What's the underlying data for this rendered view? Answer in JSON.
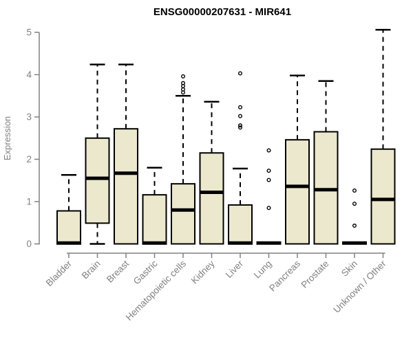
{
  "chart_data": {
    "type": "boxplot",
    "title": "ENSG00000207631 - MIR641",
    "ylabel": "Expression",
    "xlabel": "",
    "ylim": [
      0,
      5.1
    ],
    "yticks": [
      0,
      1,
      2,
      3,
      4,
      5
    ],
    "grid": false,
    "legend": false,
    "colors": {
      "box_fill": "#ece8cd",
      "box_stroke": "#000000",
      "median": "#000000",
      "whisker": "#000000",
      "axis": "#808080",
      "tick_label": "#808080",
      "title": "#000000"
    },
    "categories": [
      "Bladder",
      "Brain",
      "Breast",
      "Gastric",
      "Hematopoietic cells",
      "Kidney",
      "Liver",
      "Lung",
      "Pancreas",
      "Prostate",
      "Skin",
      "Unknown / Other"
    ],
    "boxes": [
      {
        "category": "Bladder",
        "whisker_low": 0,
        "q1": 0,
        "median": 0.02,
        "q3": 0.78,
        "whisker_high": 1.63,
        "outliers": []
      },
      {
        "category": "Brain",
        "whisker_low": 0,
        "q1": 0.49,
        "median": 1.55,
        "q3": 2.5,
        "whisker_high": 4.24,
        "outliers": []
      },
      {
        "category": "Breast",
        "whisker_low": 0,
        "q1": 0,
        "median": 1.67,
        "q3": 2.72,
        "whisker_high": 4.24,
        "outliers": []
      },
      {
        "category": "Gastric",
        "whisker_low": 0,
        "q1": 0,
        "median": 0.02,
        "q3": 1.16,
        "whisker_high": 1.8,
        "outliers": []
      },
      {
        "category": "Hematopoietic cells",
        "whisker_low": 0,
        "q1": 0,
        "median": 0.8,
        "q3": 1.42,
        "whisker_high": 3.5,
        "outliers": [
          3.58,
          3.65,
          3.73,
          3.8,
          3.96
        ]
      },
      {
        "category": "Kidney",
        "whisker_low": 0,
        "q1": 0,
        "median": 1.22,
        "q3": 2.15,
        "whisker_high": 3.36,
        "outliers": []
      },
      {
        "category": "Liver",
        "whisker_low": 0,
        "q1": 0,
        "median": 0.02,
        "q3": 0.92,
        "whisker_high": 1.78,
        "outliers": [
          2.75,
          2.8,
          3.02,
          3.23,
          4.03
        ]
      },
      {
        "category": "Lung",
        "whisker_low": 0,
        "q1": 0,
        "median": 0.02,
        "q3": 0,
        "whisker_high": 0,
        "outliers": [
          0.85,
          1.51,
          1.73,
          2.21
        ]
      },
      {
        "category": "Pancreas",
        "whisker_low": 0,
        "q1": 0,
        "median": 1.36,
        "q3": 2.46,
        "whisker_high": 3.98,
        "outliers": []
      },
      {
        "category": "Prostate",
        "whisker_low": 0,
        "q1": 0,
        "median": 1.28,
        "q3": 2.65,
        "whisker_high": 3.85,
        "outliers": []
      },
      {
        "category": "Skin",
        "whisker_low": 0,
        "q1": 0,
        "median": 0.02,
        "q3": 0,
        "whisker_high": 0,
        "outliers": [
          0.43,
          0.95,
          1.26
        ]
      },
      {
        "category": "Unknown / Other",
        "whisker_low": 0,
        "q1": 0,
        "median": 1.05,
        "q3": 2.24,
        "whisker_high": 5.06,
        "outliers": []
      }
    ]
  }
}
